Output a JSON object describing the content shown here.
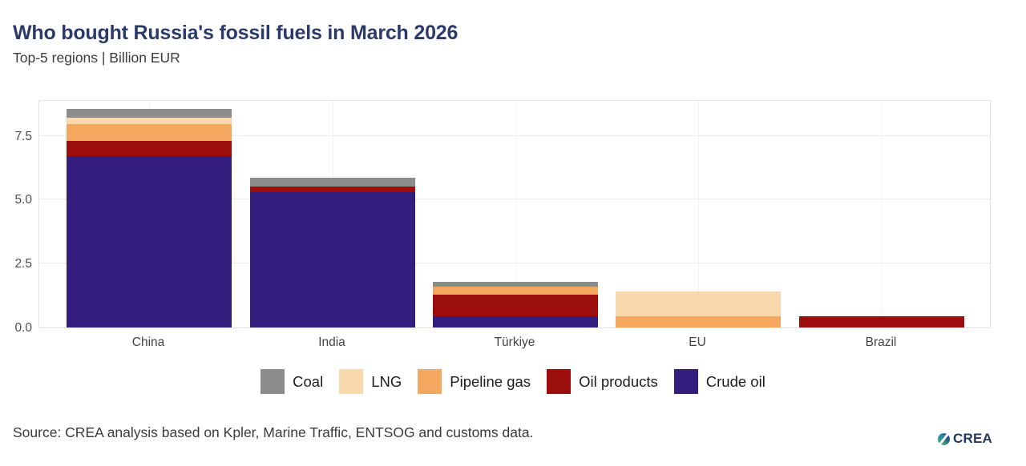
{
  "header": {
    "title": "Who bought Russia's fossil fuels in March 2026",
    "subtitle": "Top-5 regions | Billion EUR"
  },
  "chart_data": {
    "type": "bar",
    "stacked": true,
    "title": "Who bought Russia's fossil fuels in March 2026",
    "subtitle": "Top-5 regions | Billion EUR",
    "categories": [
      "China",
      "India",
      "Türkiye",
      "EU",
      "Brazil"
    ],
    "series": [
      {
        "name": "Crude oil",
        "color": "#331d7d",
        "values": [
          6.7,
          5.3,
          0.45,
          0.0,
          0.0
        ]
      },
      {
        "name": "Oil products",
        "color": "#9c0d0d",
        "values": [
          0.6,
          0.2,
          0.85,
          0.0,
          0.45
        ]
      },
      {
        "name": "Pipeline gas",
        "color": "#f3a75f",
        "values": [
          0.65,
          0.0,
          0.3,
          0.45,
          0.0
        ]
      },
      {
        "name": "LNG",
        "color": "#fad8ad",
        "values": [
          0.25,
          0.0,
          0.0,
          0.95,
          0.0
        ]
      },
      {
        "name": "Coal",
        "color": "#8c8c8c",
        "values": [
          0.35,
          0.35,
          0.2,
          0.0,
          0.0
        ]
      }
    ],
    "totals": [
      8.55,
      5.85,
      1.8,
      1.4,
      0.45
    ],
    "legend_order": [
      "Coal",
      "LNG",
      "Pipeline gas",
      "Oil products",
      "Crude oil"
    ],
    "legend_position": "bottom",
    "grid": true,
    "y_ticks": [
      "0.0",
      "2.5",
      "5.0",
      "7.5"
    ],
    "y_tick_values": [
      0,
      2.5,
      5.0,
      7.5
    ],
    "ylim": [
      0,
      8.93
    ],
    "xlabel": "",
    "ylabel": "Billion EUR"
  },
  "footer": {
    "source": "Source: CREA analysis based on Kpler, Marine Traffic, ENTSOG and customs data.",
    "logo_text": "CREA"
  },
  "colors": {
    "title": "#2b3a6b",
    "grid": "#ececec",
    "plot_border": "#e3e3e3",
    "background": "#ffffff"
  }
}
